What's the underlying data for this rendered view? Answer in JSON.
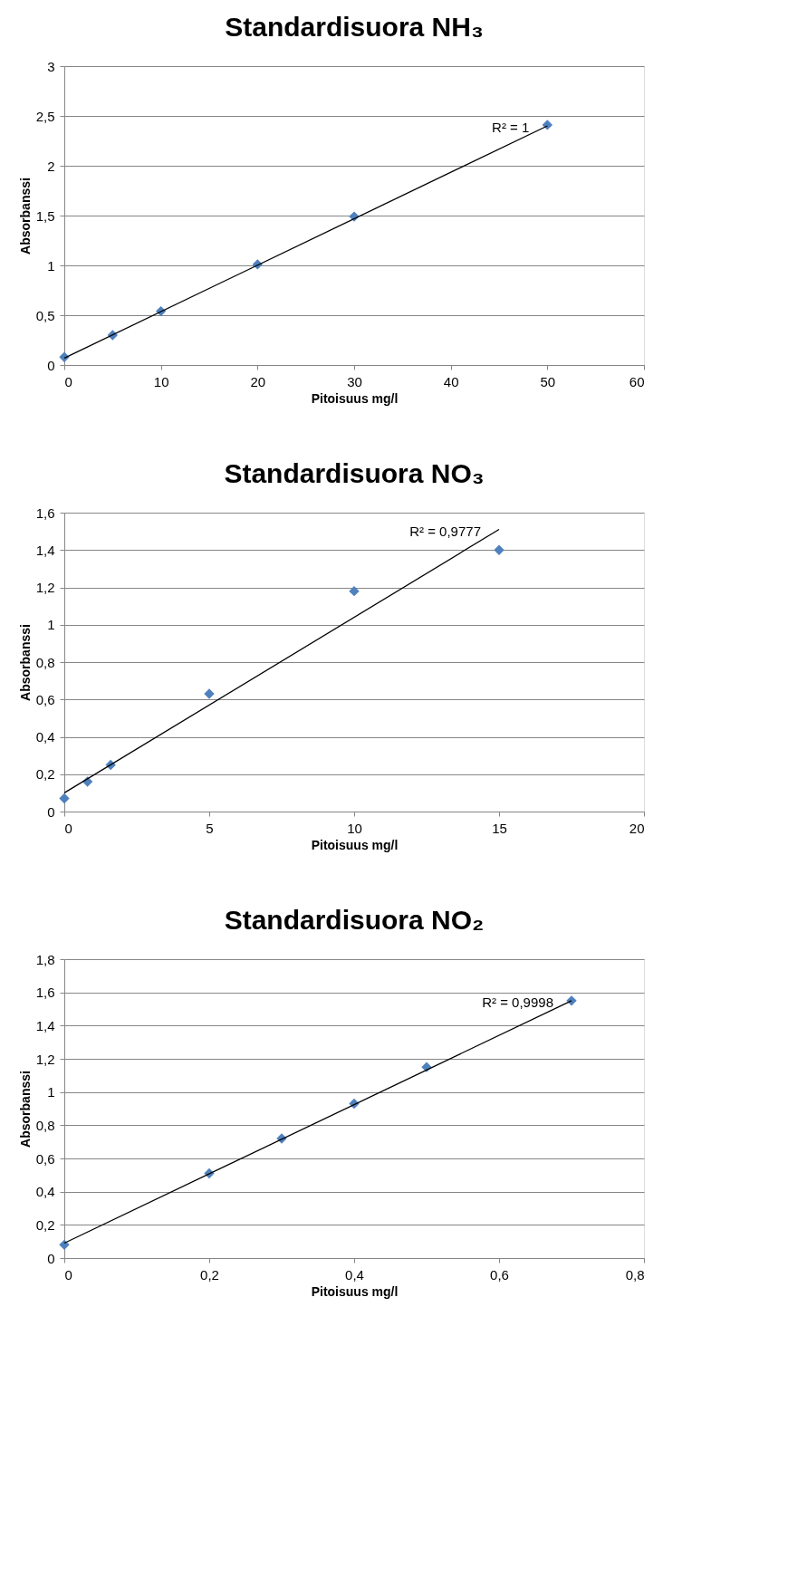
{
  "chart_data": [
    {
      "type": "scatter",
      "title": "Standardisuora NH₃",
      "xlabel": "Pitoisuus mg/l",
      "ylabel": "Absorbanssi",
      "x": [
        0,
        5,
        10,
        20,
        30,
        50
      ],
      "series": [
        {
          "color": "#4f81bd",
          "values": [
            0.08,
            0.3,
            0.54,
            1.01,
            1.49,
            2.41
          ]
        },
        {
          "type": "line",
          "marker": "none",
          "color": "#000000",
          "x": [
            0,
            50
          ],
          "values": [
            0.07,
            2.4
          ]
        }
      ],
      "xlim": [
        0,
        60
      ],
      "xticks": [
        0,
        10,
        20,
        30,
        40,
        50,
        60
      ],
      "ylim": [
        0,
        3
      ],
      "yticks": [
        0,
        {
          "value": 0.5,
          "label": "0,5"
        },
        1,
        {
          "value": 1.5,
          "label": "1,5"
        },
        2,
        {
          "value": 2.5,
          "label": "2,5"
        },
        3
      ],
      "annotations": [
        "R² = 1"
      ],
      "grid": "y",
      "legend": false,
      "marker": "diamond"
    },
    {
      "type": "scatter",
      "title": "Standardisuora NO₃",
      "xlabel": "Pitoisuus mg/l",
      "ylabel": "Absorbanssi",
      "x": [
        0,
        0.8,
        1.6,
        5,
        10,
        15
      ],
      "series": [
        {
          "color": "#4f81bd",
          "values": [
            0.07,
            0.16,
            0.25,
            0.63,
            1.18,
            1.4
          ]
        },
        {
          "type": "line",
          "marker": "none",
          "color": "#000000",
          "x": [
            0,
            15
          ],
          "values": [
            0.1,
            1.51
          ]
        }
      ],
      "xlim": [
        0,
        20
      ],
      "xticks": [
        0,
        5,
        10,
        15,
        20
      ],
      "ylim": [
        0,
        1.6
      ],
      "yticks": [
        0,
        {
          "value": 0.2,
          "label": "0,2"
        },
        {
          "value": 0.4,
          "label": "0,4"
        },
        {
          "value": 0.6,
          "label": "0,6"
        },
        {
          "value": 0.8,
          "label": "0,8"
        },
        1,
        {
          "value": 1.2,
          "label": "1,2"
        },
        {
          "value": 1.4,
          "label": "1,4"
        },
        {
          "value": 1.6,
          "label": "1,6"
        }
      ],
      "annotations": [
        "R² = 0,9777"
      ],
      "grid": "y",
      "legend": false,
      "marker": "diamond"
    },
    {
      "type": "scatter",
      "title": "Standardisuora NO₂",
      "xlabel": "Pitoisuus mg/l",
      "ylabel": "Absorbanssi",
      "x": [
        0,
        0.2,
        0.3,
        0.4,
        0.5,
        0.7
      ],
      "series": [
        {
          "color": "#4f81bd",
          "values": [
            0.08,
            0.51,
            0.72,
            0.93,
            1.15,
            1.55
          ]
        },
        {
          "type": "line",
          "marker": "none",
          "color": "#000000",
          "x": [
            0,
            0.7
          ],
          "values": [
            0.09,
            1.55
          ]
        }
      ],
      "xlim": [
        0,
        0.8
      ],
      "xticks": [
        0,
        {
          "value": 0.2,
          "label": "0,2"
        },
        {
          "value": 0.4,
          "label": "0,4"
        },
        {
          "value": 0.6,
          "label": "0,6"
        },
        {
          "value": 0.8,
          "label": "0,8"
        }
      ],
      "ylim": [
        0,
        1.8
      ],
      "yticks": [
        0,
        {
          "value": 0.2,
          "label": "0,2"
        },
        {
          "value": 0.4,
          "label": "0,4"
        },
        {
          "value": 0.6,
          "label": "0,6"
        },
        {
          "value": 0.8,
          "label": "0,8"
        },
        1,
        {
          "value": 1.2,
          "label": "1,2"
        },
        {
          "value": 1.4,
          "label": "1,4"
        },
        {
          "value": 1.6,
          "label": "1,6"
        },
        {
          "value": 1.8,
          "label": "1,8"
        }
      ],
      "annotations": [
        "R² = 0,9998"
      ],
      "grid": "y",
      "legend": false,
      "marker": "diamond"
    }
  ]
}
